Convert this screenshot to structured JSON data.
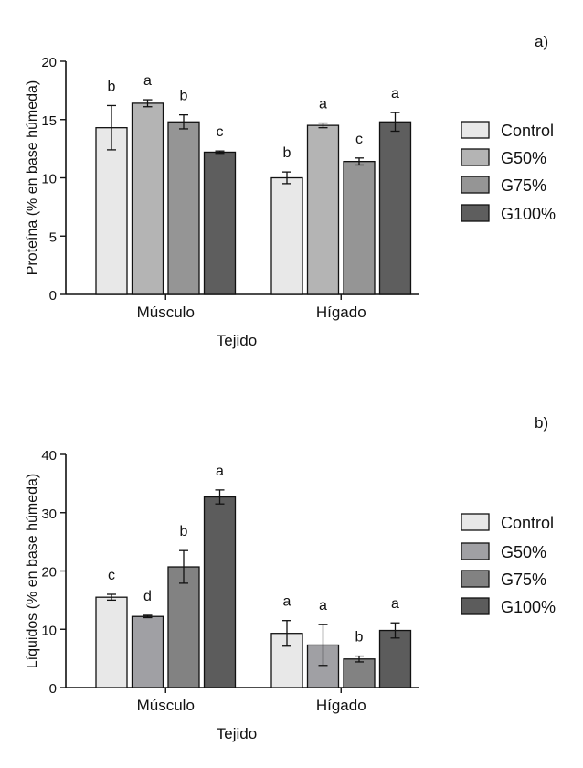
{
  "chart_data": [
    {
      "panel_label": "a)",
      "type": "bar",
      "title": "",
      "xlabel": "Tejido",
      "ylabel": "Proteína (% en base húmeda)",
      "ylim": [
        0,
        20
      ],
      "yticks": [
        0,
        5,
        10,
        15,
        20
      ],
      "categories": [
        "Músculo",
        "Hígado"
      ],
      "legend_position": "right",
      "series": [
        {
          "name": "Control",
          "color": "#e8e8e8",
          "values": [
            14.3,
            10.0
          ],
          "errors": [
            1.9,
            0.5
          ],
          "letters": [
            "b",
            "b"
          ]
        },
        {
          "name": "G50%",
          "color": "#b4b4b4",
          "values": [
            16.4,
            14.5
          ],
          "errors": [
            0.3,
            0.2
          ],
          "letters": [
            "a",
            "a"
          ]
        },
        {
          "name": "G75%",
          "color": "#959595",
          "values": [
            14.8,
            11.4
          ],
          "errors": [
            0.6,
            0.3
          ],
          "letters": [
            "b",
            "c"
          ]
        },
        {
          "name": "G100%",
          "color": "#5e5e5e",
          "values": [
            12.2,
            14.8
          ],
          "errors": [
            0.1,
            0.8
          ],
          "letters": [
            "c",
            "a"
          ]
        }
      ]
    },
    {
      "panel_label": "b)",
      "type": "bar",
      "title": "",
      "xlabel": "Tejido",
      "ylabel": "Líquidos (% en base húmeda)",
      "ylim": [
        0,
        40
      ],
      "yticks": [
        0,
        10,
        20,
        30,
        40
      ],
      "categories": [
        "Músculo",
        "Hígado"
      ],
      "legend_position": "right",
      "series": [
        {
          "name": "Control",
          "color": "#e8e8e8",
          "values": [
            15.5,
            9.3
          ],
          "errors": [
            0.5,
            2.2
          ],
          "letters": [
            "c",
            "a"
          ]
        },
        {
          "name": "G50%",
          "color": "#a0a0a4",
          "values": [
            12.2,
            7.3
          ],
          "errors": [
            0.2,
            3.5
          ],
          "letters": [
            "d",
            "a"
          ]
        },
        {
          "name": "G75%",
          "color": "#828282",
          "values": [
            20.7,
            4.9
          ],
          "errors": [
            2.8,
            0.5
          ],
          "letters": [
            "b",
            "b"
          ]
        },
        {
          "name": "G100%",
          "color": "#5c5c5c",
          "values": [
            32.7,
            9.8
          ],
          "errors": [
            1.2,
            1.3
          ],
          "letters": [
            "a",
            "a"
          ]
        }
      ]
    }
  ]
}
